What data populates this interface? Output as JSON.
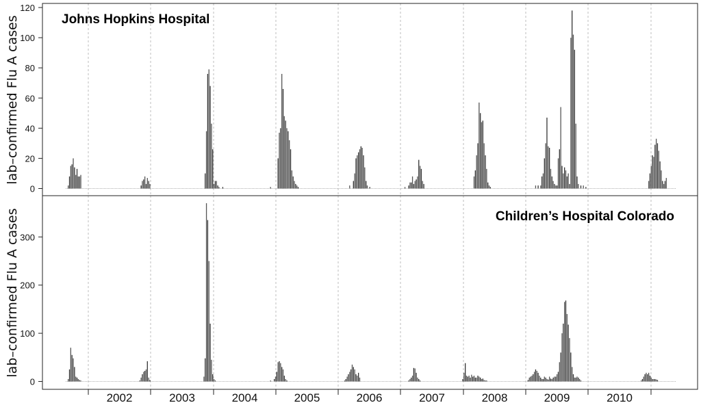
{
  "chart_data": [
    {
      "type": "bar",
      "title": "Johns Hopkins Hospital",
      "ylabel": "lab–confirmed Flu A cases",
      "ylim": [
        0,
        120
      ],
      "yticks": [
        "0",
        "20",
        "40",
        "60",
        "80",
        "100",
        "120"
      ],
      "grid": "vertical dashed lines at season boundaries",
      "x_unit": "weeks since start of 2002 season",
      "series": [
        {
          "name": "",
          "x": [
            2,
            3,
            4,
            5,
            6,
            7,
            8,
            9,
            10,
            11,
            12,
            60,
            61,
            62,
            63,
            64,
            65,
            66,
            67,
            111,
            112,
            113,
            114,
            115,
            116,
            117,
            118,
            119,
            120,
            121,
            122,
            125,
            163,
            169,
            170,
            171,
            172,
            173,
            174,
            175,
            176,
            177,
            178,
            179,
            180,
            181,
            182,
            183,
            184,
            185,
            226,
            229,
            230,
            231,
            232,
            233,
            234,
            235,
            236,
            237,
            238,
            239,
            240,
            242,
            270,
            273,
            274,
            275,
            276,
            277,
            278,
            279,
            280,
            281,
            282,
            283,
            284,
            285,
            325,
            326,
            327,
            328,
            329,
            330,
            331,
            332,
            333,
            334,
            335,
            336,
            337,
            338,
            374,
            376,
            378,
            379,
            380,
            381,
            382,
            383,
            384,
            385,
            386,
            387,
            388,
            389,
            390,
            391,
            392,
            393,
            394,
            395,
            396,
            397,
            398,
            399,
            400,
            401,
            402,
            403,
            404,
            405,
            406,
            407,
            408,
            410,
            412,
            414,
            464,
            465,
            466,
            467,
            468,
            469,
            470,
            471,
            472,
            473,
            474,
            475,
            476,
            477,
            478
          ],
          "values": [
            2,
            8,
            15,
            16,
            20,
            14,
            9,
            13,
            8,
            8,
            9,
            2,
            5,
            6,
            8,
            3,
            7,
            5,
            3,
            10,
            38,
            76,
            79,
            68,
            43,
            26,
            3,
            5,
            5,
            2,
            1,
            1,
            1,
            20,
            37,
            40,
            76,
            66,
            48,
            45,
            40,
            38,
            32,
            26,
            12,
            8,
            5,
            3,
            2,
            1,
            2,
            5,
            10,
            20,
            22,
            24,
            26,
            28,
            27,
            22,
            14,
            5,
            2,
            1,
            1,
            2,
            4,
            4,
            8,
            3,
            5,
            6,
            8,
            19,
            15,
            13,
            5,
            3,
            8,
            12,
            22,
            30,
            57,
            50,
            44,
            45,
            30,
            22,
            13,
            4,
            2,
            1,
            2,
            2,
            2,
            8,
            10,
            20,
            30,
            47,
            28,
            27,
            13,
            8,
            5,
            3,
            2,
            2,
            20,
            26,
            54,
            15,
            10,
            14,
            12,
            8,
            10,
            3,
            100,
            118,
            102,
            92,
            43,
            8,
            3,
            2,
            2,
            1,
            5,
            10,
            15,
            22,
            21,
            29,
            33,
            30,
            25,
            18,
            12,
            5,
            3,
            5,
            7
          ]
        }
      ]
    },
    {
      "type": "bar",
      "title": "Children’s Hospital Colorado",
      "ylabel": "lab–confirmed Flu A cases",
      "ylim": [
        0,
        370
      ],
      "yticks": [
        "0",
        "100",
        "200",
        "300"
      ],
      "xlabel": "",
      "x_categories": [
        "2002",
        "2003",
        "2004",
        "2005",
        "2006",
        "2007",
        "2008",
        "2009",
        "2010"
      ],
      "series": [
        {
          "name": "",
          "x": [
            2,
            3,
            4,
            5,
            6,
            7,
            8,
            9,
            10,
            11,
            12,
            59,
            60,
            61,
            62,
            63,
            64,
            65,
            66,
            67,
            110,
            111,
            112,
            113,
            114,
            115,
            116,
            117,
            118,
            119,
            163,
            166,
            167,
            168,
            169,
            170,
            171,
            172,
            173,
            174,
            175,
            176,
            222,
            223,
            224,
            225,
            226,
            227,
            228,
            229,
            230,
            231,
            232,
            233,
            234,
            273,
            274,
            275,
            276,
            277,
            278,
            279,
            280,
            281,
            282,
            316,
            317,
            318,
            319,
            320,
            321,
            322,
            323,
            324,
            325,
            326,
            327,
            328,
            329,
            330,
            331,
            332,
            333,
            334,
            335,
            368,
            369,
            370,
            371,
            372,
            373,
            374,
            375,
            376,
            377,
            378,
            379,
            380,
            381,
            382,
            383,
            384,
            385,
            386,
            387,
            388,
            389,
            390,
            391,
            392,
            393,
            394,
            395,
            396,
            397,
            398,
            399,
            400,
            401,
            402,
            403,
            404,
            405,
            406,
            407,
            408,
            409,
            410,
            458,
            459,
            460,
            461,
            462,
            463,
            464,
            465,
            466,
            467,
            468,
            469,
            470,
            471
          ],
          "values": [
            5,
            25,
            70,
            55,
            48,
            30,
            10,
            8,
            5,
            3,
            2,
            2,
            8,
            15,
            20,
            22,
            25,
            42,
            8,
            3,
            10,
            48,
            370,
            335,
            250,
            120,
            45,
            15,
            5,
            2,
            2,
            5,
            10,
            20,
            40,
            42,
            38,
            30,
            25,
            12,
            5,
            2,
            2,
            5,
            10,
            15,
            20,
            25,
            35,
            30,
            25,
            15,
            12,
            18,
            8,
            2,
            5,
            8,
            12,
            28,
            27,
            18,
            8,
            5,
            2,
            5,
            18,
            38,
            12,
            10,
            12,
            8,
            14,
            10,
            12,
            8,
            8,
            12,
            10,
            8,
            5,
            6,
            3,
            2,
            2,
            3,
            8,
            10,
            12,
            15,
            20,
            25,
            22,
            18,
            12,
            8,
            5,
            5,
            10,
            8,
            5,
            4,
            10,
            6,
            5,
            8,
            10,
            10,
            15,
            20,
            40,
            60,
            100,
            120,
            165,
            168,
            140,
            118,
            90,
            60,
            30,
            15,
            8,
            8,
            10,
            8,
            5,
            2,
            2,
            5,
            10,
            15,
            18,
            15,
            18,
            12,
            8,
            5,
            5,
            5,
            4,
            3
          ]
        }
      ]
    }
  ]
}
